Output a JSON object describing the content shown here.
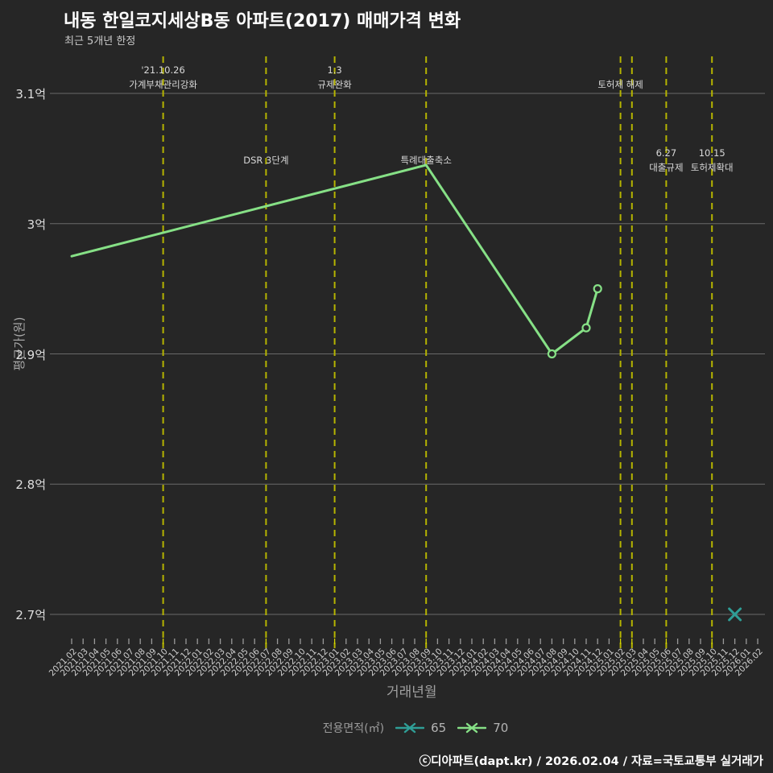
{
  "header": {
    "title": "내동 한일코지세상B동 아파트(2017) 매매가격 변화",
    "subtitle": "최근 5개년 한정"
  },
  "axes": {
    "y_title": "평균가(원)",
    "x_title": "거래년월",
    "y_ticks": [
      {
        "label": "3.1억",
        "value": 3.1
      },
      {
        "label": "3억",
        "value": 3.0
      },
      {
        "label": "2.9억",
        "value": 2.9
      },
      {
        "label": "2.8억",
        "value": 2.8
      },
      {
        "label": "2.7억",
        "value": 2.7
      }
    ]
  },
  "chart_data": {
    "type": "line",
    "title": "내동 한일코지세상B동 아파트(2017) 매매가격 변화",
    "xlabel": "거래년월",
    "ylabel": "평균가(원)",
    "unit": "억원",
    "ylim": [
      2.67,
      3.13
    ],
    "grid": "horizontal",
    "legend_position": "bottom",
    "x": [
      "2021.02",
      "2021.03",
      "2021.04",
      "2021.05",
      "2021.06",
      "2021.07",
      "2021.08",
      "2021.09",
      "2021.10",
      "2021.11",
      "2021.12",
      "2022.01",
      "2022.02",
      "2022.03",
      "2022.04",
      "2022.05",
      "2022.06",
      "2022.07",
      "2022.08",
      "2022.09",
      "2022.10",
      "2022.11",
      "2022.12",
      "2023.01",
      "2023.02",
      "2023.03",
      "2023.04",
      "2023.05",
      "2023.06",
      "2023.07",
      "2023.08",
      "2023.09",
      "2023.10",
      "2023.11",
      "2023.12",
      "2024.01",
      "2024.02",
      "2024.03",
      "2024.04",
      "2024.05",
      "2024.06",
      "2024.07",
      "2024.08",
      "2024.09",
      "2024.10",
      "2024.11",
      "2024.12",
      "2025.01",
      "2025.02",
      "2025.03",
      "2025.04",
      "2025.05",
      "2025.06",
      "2025.07",
      "2025.08",
      "2025.09",
      "2025.10",
      "2025.11",
      "2025.12",
      "2026.01",
      "2026.02"
    ],
    "series": [
      {
        "name": "65",
        "color": "#2f9e96",
        "marker": "x",
        "points": [
          {
            "x": "2025.12",
            "y": 2.7
          }
        ]
      },
      {
        "name": "70",
        "color": "#86e086",
        "marker": "circle",
        "points": [
          {
            "x": "2021.02",
            "y": 2.975,
            "ring": false
          },
          {
            "x": "2023.09",
            "y": 3.045,
            "ring": false
          },
          {
            "x": "2024.08",
            "y": 2.9,
            "ring": true
          },
          {
            "x": "2024.11",
            "y": 2.92,
            "ring": true
          },
          {
            "x": "2024.12",
            "y": 2.95,
            "ring": true
          }
        ]
      }
    ],
    "events": [
      {
        "month": "2021.10",
        "label_lines": [
          "'21.10.26",
          "가계부채관리강화"
        ],
        "label_pos": "top"
      },
      {
        "month": "2022.07",
        "label_lines": [
          "DSR 3단계"
        ],
        "label_pos": "mid"
      },
      {
        "month": "2023.01",
        "label_lines": [
          "1.3",
          "규제완화"
        ],
        "label_pos": "top"
      },
      {
        "month": "2023.09",
        "label_lines": [
          "특례대출축소"
        ],
        "label_pos": "mid"
      },
      {
        "month": "2025.02",
        "label_lines": [
          "토허제 해제"
        ],
        "label_pos": "top"
      },
      {
        "month": "2025.03",
        "label_lines": [],
        "label_pos": "none"
      },
      {
        "month": "2025.06",
        "label_lines": [
          "6.27",
          "대출규제"
        ],
        "label_pos": "mid"
      },
      {
        "month": "2025.10",
        "label_lines": [
          "10.15",
          "토허제확대"
        ],
        "label_pos": "mid"
      }
    ]
  },
  "legend": {
    "title": "전용면적(㎡)",
    "items": [
      {
        "label": "65",
        "color": "#2f9e96"
      },
      {
        "label": "70",
        "color": "#86e086"
      }
    ]
  },
  "footer": {
    "credit": "ⓒ디아파트(dapt.kr) / 2026.02.04 / 자료=국토교통부 실거래가"
  },
  "colors": {
    "background": "#262626",
    "grid": "#767676",
    "tick": "#999999",
    "event_tick": "#d6d600",
    "event_line": "#b5b400",
    "annotation_text": "#d9d9d9"
  }
}
